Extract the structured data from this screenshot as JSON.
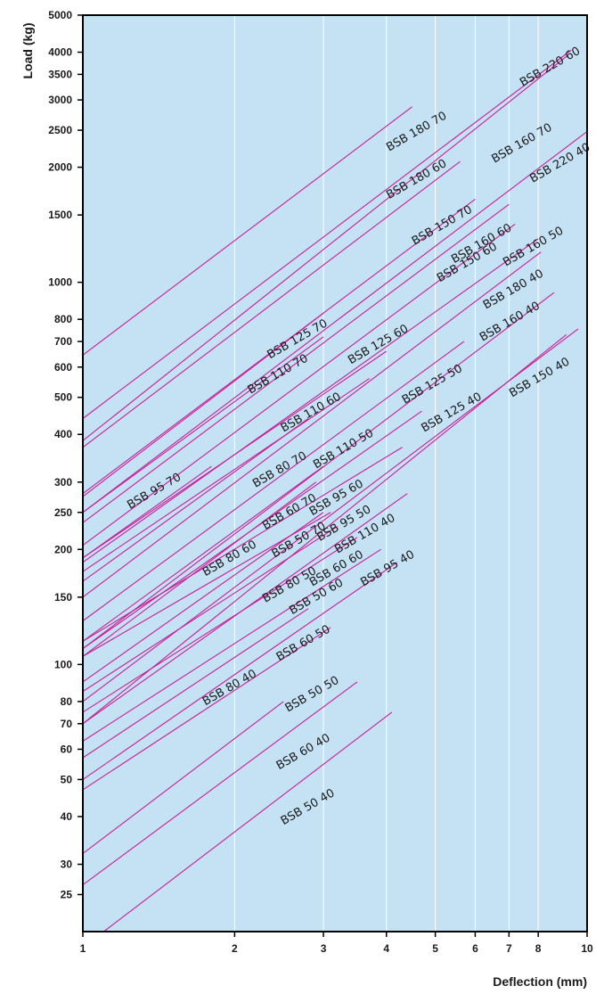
{
  "chart_data": {
    "type": "line",
    "title": "",
    "xlabel": "Deflection (mm)",
    "ylabel": "Load (kg)",
    "x_scale": "log",
    "y_scale": "log",
    "xlim": [
      1,
      10
    ],
    "ylim": [
      20,
      5000
    ],
    "x_ticks": [
      "1",
      "2",
      "3",
      "4",
      "5",
      "6",
      "7",
      "8",
      "10"
    ],
    "y_ticks": [
      "25",
      "30",
      "40",
      "50",
      "60",
      "70",
      "80",
      "100",
      "150",
      "200",
      "250",
      "300",
      "400",
      "500",
      "600",
      "700",
      "800",
      "1000",
      "1500",
      "2000",
      "2500",
      "3000",
      "3500",
      "4000",
      "5000"
    ],
    "grid": true,
    "colors": {
      "plot_bg": "#c5e2f5",
      "grid": "#ffffff",
      "line": "#c81e96",
      "frame": "#000000"
    },
    "series": [
      {
        "name": "BSB 180 70",
        "x": [
          1,
          4.5
        ],
        "y": [
          645,
          2880
        ]
      },
      {
        "name": "BSB 220 60",
        "x": [
          1,
          9.3
        ],
        "y": [
          440,
          4050
        ]
      },
      {
        "name": "BSB 160 70",
        "x": [
          1,
          9.1
        ],
        "y": [
          385,
          3900
        ]
      },
      {
        "name": "BSB 180 60",
        "x": [
          1,
          5.6
        ],
        "y": [
          370,
          2070
        ]
      },
      {
        "name": "BSB 220 40",
        "x": [
          1,
          10
        ],
        "y": [
          250,
          2480
        ]
      },
      {
        "name": "BSB 150 70",
        "x": [
          1,
          6
        ],
        "y": [
          280,
          1650
        ]
      },
      {
        "name": "BSB 125 70",
        "x": [
          1,
          3
        ],
        "y": [
          275,
          830
        ]
      },
      {
        "name": "BSB 160 60",
        "x": [
          1,
          7
        ],
        "y": [
          235,
          1600
        ]
      },
      {
        "name": "BSB 150 60",
        "x": [
          1,
          7.2
        ],
        "y": [
          205,
          1420
        ]
      },
      {
        "name": "BSB 160 50",
        "x": [
          1,
          8
        ],
        "y": [
          185,
          1300
        ]
      },
      {
        "name": "BSB 180 40",
        "x": [
          1,
          8.1
        ],
        "y": [
          150,
          1200
        ]
      },
      {
        "name": "BSB 110 70",
        "x": [
          1,
          3
        ],
        "y": [
          250,
          720
        ]
      },
      {
        "name": "BSB 125 60",
        "x": [
          1,
          4
        ],
        "y": [
          190,
          660
        ]
      },
      {
        "name": "BSB 110 60",
        "x": [
          1,
          3.7
        ],
        "y": [
          175,
          560
        ]
      },
      {
        "name": "BSB 160 40",
        "x": [
          1,
          8.6
        ],
        "y": [
          110,
          940
        ]
      },
      {
        "name": "BSB 125 50",
        "x": [
          1,
          5.7
        ],
        "y": [
          130,
          700
        ]
      },
      {
        "name": "BSB 95 70",
        "x": [
          1,
          1.8
        ],
        "y": [
          190,
          330
        ]
      },
      {
        "name": "BSB 80 70",
        "x": [
          1,
          2.8
        ],
        "y": [
          165,
          440
        ]
      },
      {
        "name": "BSB 110 50",
        "x": [
          1,
          4.7
        ],
        "y": [
          110,
          460
        ]
      },
      {
        "name": "BSB 150 40",
        "x": [
          1,
          9.6
        ],
        "y": [
          80,
          755
        ]
      },
      {
        "name": "BSB 125 40",
        "x": [
          1,
          9.1
        ],
        "y": [
          70,
          730
        ]
      },
      {
        "name": "BSB 95 60",
        "x": [
          1,
          4.3
        ],
        "y": [
          115,
          370
        ]
      },
      {
        "name": "BSB 60 70",
        "x": [
          1,
          3
        ],
        "y": [
          115,
          330
        ]
      },
      {
        "name": "BSB 95 50",
        "x": [
          1,
          3.1
        ],
        "y": [
          105,
          250
        ]
      },
      {
        "name": "BSB 80 60",
        "x": [
          1,
          3
        ],
        "y": [
          90,
          250
        ]
      },
      {
        "name": "BSB 50 70",
        "x": [
          1,
          2.9
        ],
        "y": [
          105,
          300
        ]
      },
      {
        "name": "BSB 110 40",
        "x": [
          1,
          4.4
        ],
        "y": [
          70,
          280
        ]
      },
      {
        "name": "BSB 80 50",
        "x": [
          1,
          3.2
        ],
        "y": [
          85,
          230
        ]
      },
      {
        "name": "BSB 60 60",
        "x": [
          1,
          3.5
        ],
        "y": [
          75,
          215
        ]
      },
      {
        "name": "BSB 50 60",
        "x": [
          1,
          3.9
        ],
        "y": [
          63,
          200
        ]
      },
      {
        "name": "BSB 95 40",
        "x": [
          1,
          4.2
        ],
        "y": [
          50,
          185
        ]
      },
      {
        "name": "BSB 60 50",
        "x": [
          1,
          2.8
        ],
        "y": [
          57,
          140
        ]
      },
      {
        "name": "BSB 80 40",
        "x": [
          1,
          3.1
        ],
        "y": [
          47,
          125
        ]
      },
      {
        "name": "BSB 50 50",
        "x": [
          1,
          2.5
        ],
        "y": [
          32,
          80
        ]
      },
      {
        "name": "BSB 60 40",
        "x": [
          1,
          3.5
        ],
        "y": [
          26.5,
          90
        ]
      },
      {
        "name": "BSB 50 40",
        "x": [
          1.1,
          4.1
        ],
        "y": [
          20,
          75
        ]
      }
    ],
    "labels": [
      {
        "text": "BSB 180 70",
        "x": 4.05,
        "y": 2200
      },
      {
        "text": "BSB 220 60",
        "x": 7.45,
        "y": 3250
      },
      {
        "text": "BSB 160 70",
        "x": 6.55,
        "y": 2050
      },
      {
        "text": "BSB 180 60",
        "x": 4.05,
        "y": 1650
      },
      {
        "text": "BSB 220 40",
        "x": 7.8,
        "y": 1820
      },
      {
        "text": "BSB 150 70",
        "x": 4.55,
        "y": 1250
      },
      {
        "text": "BSB 125 70",
        "x": 2.35,
        "y": 630
      },
      {
        "text": "BSB 160 60",
        "x": 5.45,
        "y": 1120
      },
      {
        "text": "BSB 150 60",
        "x": 5.1,
        "y": 1000
      },
      {
        "text": "BSB 160 50",
        "x": 6.9,
        "y": 1100
      },
      {
        "text": "BSB 180 40",
        "x": 6.3,
        "y": 850
      },
      {
        "text": "BSB 110 70",
        "x": 2.15,
        "y": 510
      },
      {
        "text": "BSB 125 60",
        "x": 3.4,
        "y": 610
      },
      {
        "text": "BSB 110 60",
        "x": 2.5,
        "y": 405
      },
      {
        "text": "BSB 160 40",
        "x": 6.2,
        "y": 700
      },
      {
        "text": "BSB 125 50",
        "x": 4.35,
        "y": 480
      },
      {
        "text": "BSB 95 70",
        "x": 1.24,
        "y": 255
      },
      {
        "text": "BSB 80 70",
        "x": 2.2,
        "y": 290
      },
      {
        "text": "BSB 110 50",
        "x": 2.9,
        "y": 325
      },
      {
        "text": "BSB 150 40",
        "x": 7.1,
        "y": 500
      },
      {
        "text": "BSB 125 40",
        "x": 4.75,
        "y": 405
      },
      {
        "text": "BSB 95 60",
        "x": 2.85,
        "y": 245
      },
      {
        "text": "BSB 60 70",
        "x": 2.3,
        "y": 225
      },
      {
        "text": "BSB 95 50",
        "x": 2.95,
        "y": 210
      },
      {
        "text": "BSB 80 60",
        "x": 1.75,
        "y": 170
      },
      {
        "text": "BSB 50 70",
        "x": 2.4,
        "y": 190
      },
      {
        "text": "BSB 110 40",
        "x": 3.2,
        "y": 195
      },
      {
        "text": "BSB 80 50",
        "x": 2.3,
        "y": 145
      },
      {
        "text": "BSB 60 60",
        "x": 2.85,
        "y": 160
      },
      {
        "text": "BSB 50 60",
        "x": 2.6,
        "y": 135
      },
      {
        "text": "BSB 95 40",
        "x": 3.6,
        "y": 160
      },
      {
        "text": "BSB 60 50",
        "x": 2.45,
        "y": 102
      },
      {
        "text": "BSB 80 40",
        "x": 1.75,
        "y": 78
      },
      {
        "text": "BSB 50 50",
        "x": 2.55,
        "y": 75
      },
      {
        "text": "BSB 60 40",
        "x": 2.45,
        "y": 53
      },
      {
        "text": "BSB 50 40",
        "x": 2.5,
        "y": 38
      }
    ]
  }
}
